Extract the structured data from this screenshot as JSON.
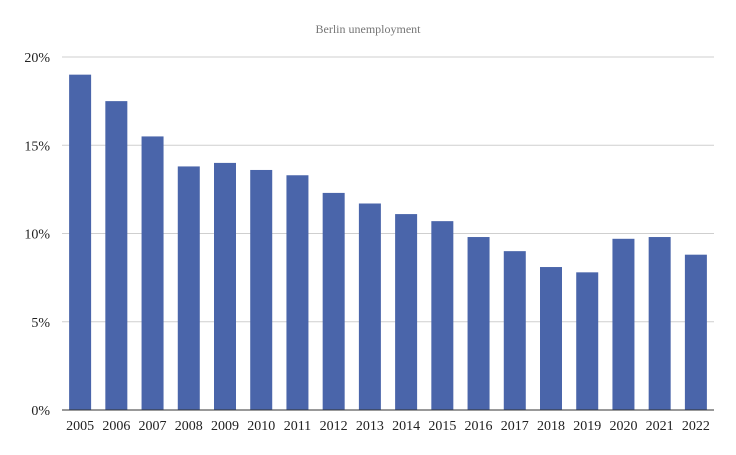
{
  "chart_data": {
    "type": "bar",
    "title": "Berlin unemployment",
    "xlabel": "",
    "ylabel": "",
    "categories": [
      "2005",
      "2006",
      "2007",
      "2008",
      "2009",
      "2010",
      "2011",
      "2012",
      "2013",
      "2014",
      "2015",
      "2016",
      "2017",
      "2018",
      "2019",
      "2020",
      "2021",
      "2022"
    ],
    "values": [
      19.0,
      17.5,
      15.5,
      13.8,
      14.0,
      13.6,
      13.3,
      12.3,
      11.7,
      11.1,
      10.7,
      9.8,
      9.0,
      8.1,
      7.8,
      9.7,
      9.8,
      8.8
    ],
    "ylim": [
      0,
      20
    ],
    "yticks": [
      0,
      5,
      10,
      15,
      20
    ],
    "ytick_labels": [
      "0%",
      "5%",
      "10%",
      "15%",
      "20%"
    ],
    "grid": true,
    "legend": "none",
    "bar_color": "#4a65aa"
  }
}
